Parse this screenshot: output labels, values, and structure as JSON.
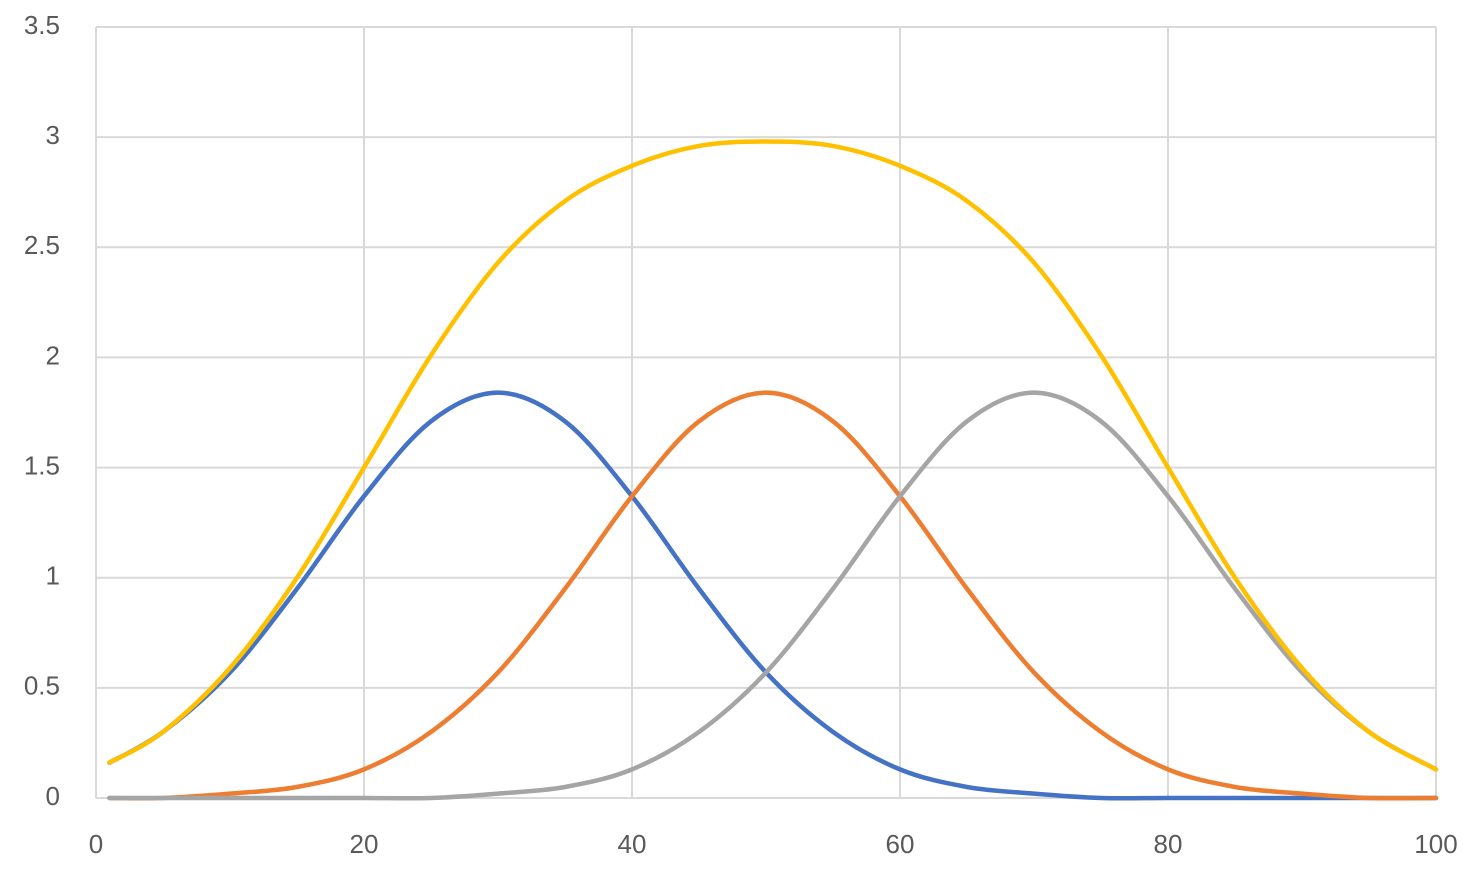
{
  "chart_data": {
    "type": "line",
    "x": [
      1,
      5,
      10,
      15,
      20,
      25,
      30,
      35,
      40,
      45,
      50,
      55,
      60,
      65,
      70,
      75,
      80,
      85,
      90,
      95,
      100
    ],
    "series": [
      {
        "color": "#4472c4",
        "values": [
          0.16,
          0.3,
          0.57,
          0.95,
          1.37,
          1.71,
          1.84,
          1.71,
          1.37,
          0.95,
          0.57,
          0.3,
          0.13,
          0.05,
          0.02,
          0,
          0,
          0,
          0,
          0,
          0
        ]
      },
      {
        "color": "#ed7d31",
        "values": [
          0,
          0,
          0.02,
          0.05,
          0.13,
          0.3,
          0.57,
          0.95,
          1.37,
          1.71,
          1.84,
          1.71,
          1.37,
          0.95,
          0.57,
          0.3,
          0.13,
          0.05,
          0.02,
          0,
          0
        ]
      },
      {
        "color": "#a5a5a5",
        "values": [
          0,
          0,
          0,
          0,
          0,
          0,
          0.02,
          0.05,
          0.13,
          0.3,
          0.57,
          0.95,
          1.37,
          1.71,
          1.84,
          1.71,
          1.37,
          0.95,
          0.57,
          0.3,
          0.13
        ]
      },
      {
        "color": "#ffc000",
        "values": [
          0.16,
          0.3,
          0.59,
          1.0,
          1.5,
          2.01,
          2.43,
          2.71,
          2.87,
          2.96,
          2.98,
          2.96,
          2.87,
          2.71,
          2.43,
          2.01,
          1.5,
          1.0,
          0.59,
          0.3,
          0.13
        ]
      }
    ],
    "xlim": [
      0,
      100
    ],
    "xticks": [
      0,
      20,
      40,
      60,
      80,
      100
    ],
    "ylim": [
      0,
      3.5
    ],
    "yticks": [
      0,
      0.5,
      1,
      1.5,
      2,
      2.5,
      3,
      3.5
    ],
    "grid": true
  }
}
